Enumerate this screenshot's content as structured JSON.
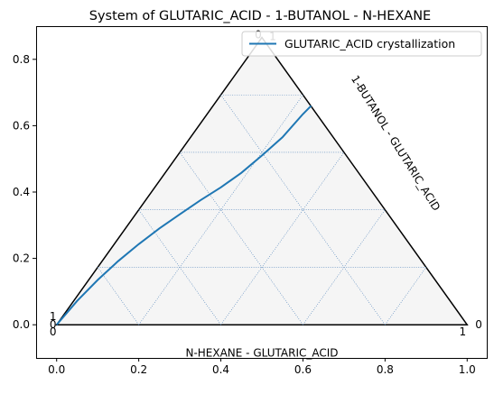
{
  "chart_data": {
    "type": "line",
    "title": "System of GLUTARIC_ACID - 1-BUTANOL - N-HEXANE",
    "xlabel": "",
    "ylabel": "",
    "xlim": [
      -0.05,
      1.05
    ],
    "ylim": [
      -0.1,
      0.9
    ],
    "x_ticks": [
      0.0,
      0.2,
      0.4,
      0.6,
      0.8,
      1.0
    ],
    "x_tick_labels": [
      "0.0",
      "0.2",
      "0.4",
      "0.6",
      "0.8",
      "1.0"
    ],
    "y_ticks": [
      0.0,
      0.2,
      0.4,
      0.6,
      0.8
    ],
    "y_tick_labels": [
      "0.0",
      "0.2",
      "0.4",
      "0.6",
      "0.8"
    ],
    "grid": true,
    "legend_position": "top-right",
    "triangle": {
      "vertices": [
        [
          0,
          0
        ],
        [
          1,
          0
        ],
        [
          0.5,
          0.866
        ]
      ],
      "fill": "#f5f5f5",
      "grid_levels": [
        0.2,
        0.4,
        0.6,
        0.8
      ]
    },
    "side_labels": {
      "right": "1-BUTANOL - GLUTARIC_ACID",
      "bottom": "N-HEXANE - GLUTARIC_ACID"
    },
    "vertex_labels": {
      "top": [
        "0",
        "1"
      ],
      "left": [
        "1",
        "0",
        "0"
      ],
      "right": [
        "0",
        "1"
      ]
    },
    "series": [
      {
        "name": "GLUTARIC_ACID crystallization",
        "color": "#1f77b4",
        "x": [
          0.0,
          0.05,
          0.1,
          0.15,
          0.2,
          0.25,
          0.3,
          0.35,
          0.4,
          0.45,
          0.5,
          0.55,
          0.6,
          0.62
        ],
        "y": [
          0.0,
          0.072,
          0.135,
          0.192,
          0.243,
          0.29,
          0.333,
          0.375,
          0.414,
          0.458,
          0.51,
          0.565,
          0.635,
          0.66
        ]
      }
    ]
  }
}
